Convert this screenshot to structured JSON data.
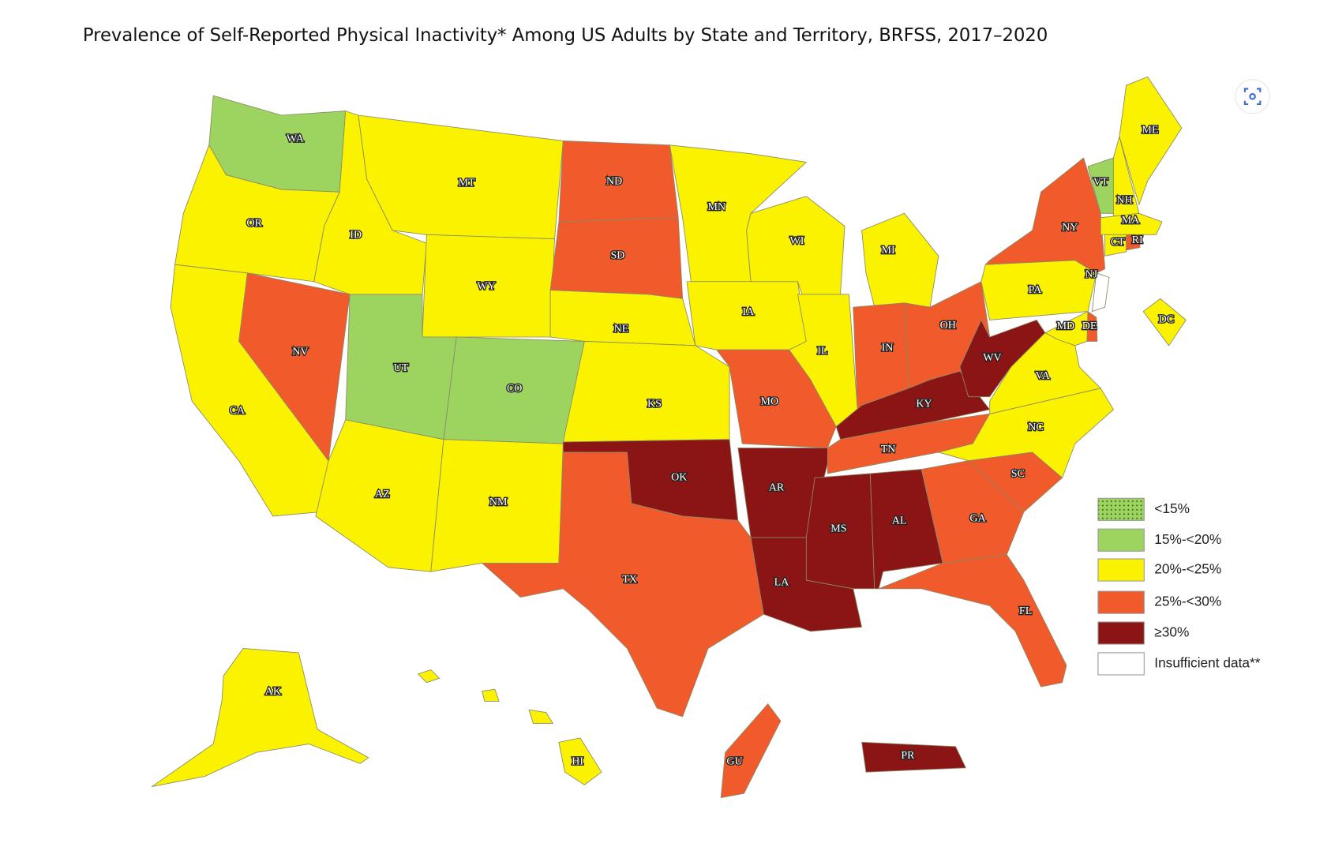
{
  "title": "Prevalence of Self-Reported Physical Inactivity* Among US Adults by State and Territory, BRFSS, 2017–2020",
  "legend": [
    {
      "label": "<15%",
      "color": "#9dd45f",
      "pattern": "dots"
    },
    {
      "label": "15%-<20%",
      "color": "#9dd45f"
    },
    {
      "label": "20%-<25%",
      "color": "#fbf200"
    },
    {
      "label": "25%-<30%",
      "color": "#f15a2b"
    },
    {
      "label": "≥30%",
      "color": "#8b1414"
    },
    {
      "label": "Insufficient data**",
      "color": "#ffffff"
    }
  ],
  "states": [
    {
      "label": "WA",
      "category": "15%-<20%"
    },
    {
      "label": "OR",
      "category": "20%-<25%"
    },
    {
      "label": "CA",
      "category": "20%-<25%"
    },
    {
      "label": "NV",
      "category": "25%-<30%"
    },
    {
      "label": "ID",
      "category": "20%-<25%"
    },
    {
      "label": "MT",
      "category": "20%-<25%"
    },
    {
      "label": "WY",
      "category": "20%-<25%"
    },
    {
      "label": "UT",
      "category": "15%-<20%"
    },
    {
      "label": "CO",
      "category": "15%-<20%"
    },
    {
      "label": "AZ",
      "category": "20%-<25%"
    },
    {
      "label": "NM",
      "category": "20%-<25%"
    },
    {
      "label": "ND",
      "category": "25%-<30%"
    },
    {
      "label": "SD",
      "category": "25%-<30%"
    },
    {
      "label": "NE",
      "category": "20%-<25%"
    },
    {
      "label": "KS",
      "category": "20%-<25%"
    },
    {
      "label": "OK",
      "category": "≥30%"
    },
    {
      "label": "TX",
      "category": "25%-<30%"
    },
    {
      "label": "MN",
      "category": "20%-<25%"
    },
    {
      "label": "IA",
      "category": "20%-<25%"
    },
    {
      "label": "MO",
      "category": "25%-<30%"
    },
    {
      "label": "AR",
      "category": "≥30%"
    },
    {
      "label": "LA",
      "category": "≥30%"
    },
    {
      "label": "WI",
      "category": "20%-<25%"
    },
    {
      "label": "IL",
      "category": "20%-<25%"
    },
    {
      "label": "MI",
      "category": "20%-<25%"
    },
    {
      "label": "IN",
      "category": "25%-<30%"
    },
    {
      "label": "OH",
      "category": "25%-<30%"
    },
    {
      "label": "KY",
      "category": "≥30%"
    },
    {
      "label": "TN",
      "category": "25%-<30%"
    },
    {
      "label": "MS",
      "category": "≥30%"
    },
    {
      "label": "AL",
      "category": "≥30%"
    },
    {
      "label": "GA",
      "category": "25%-<30%"
    },
    {
      "label": "FL",
      "category": "25%-<30%"
    },
    {
      "label": "SC",
      "category": "25%-<30%"
    },
    {
      "label": "NC",
      "category": "20%-<25%"
    },
    {
      "label": "VA",
      "category": "20%-<25%"
    },
    {
      "label": "WV",
      "category": "≥30%"
    },
    {
      "label": "PA",
      "category": "20%-<25%"
    },
    {
      "label": "NY",
      "category": "25%-<30%"
    },
    {
      "label": "NJ",
      "category": "Insufficient data**"
    },
    {
      "label": "DE",
      "category": "25%-<30%"
    },
    {
      "label": "MD",
      "category": "20%-<25%"
    },
    {
      "label": "VT",
      "category": "15%-<20%"
    },
    {
      "label": "NH",
      "category": "20%-<25%"
    },
    {
      "label": "ME",
      "category": "20%-<25%"
    },
    {
      "label": "MA",
      "category": "20%-<25%"
    },
    {
      "label": "CT",
      "category": "20%-<25%"
    },
    {
      "label": "RI",
      "category": "25%-<30%"
    },
    {
      "label": "DC",
      "category": "20%-<25%"
    },
    {
      "label": "AK",
      "category": "20%-<25%"
    },
    {
      "label": "HI",
      "category": "20%-<25%"
    },
    {
      "label": "GU",
      "category": "25%-<30%"
    },
    {
      "label": "PR",
      "category": "≥30%"
    }
  ]
}
